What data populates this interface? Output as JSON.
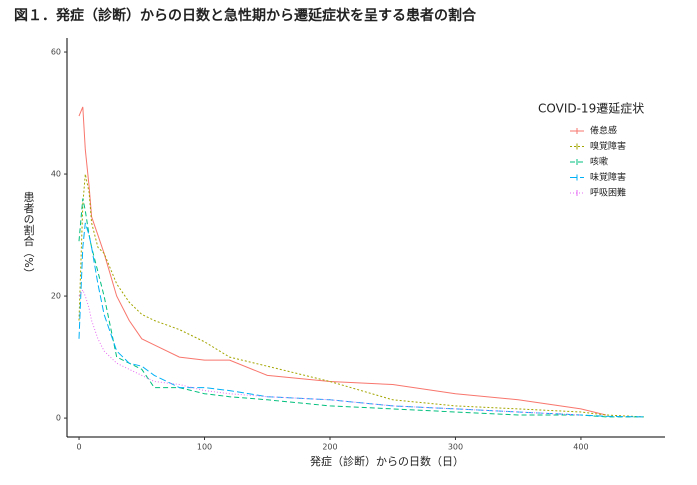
{
  "chart_data": {
    "type": "line",
    "title": "図１．発症（診断）からの日数と急性期から遷延症状を呈する患者の割合",
    "x_label": "発症（診断）からの日数（日）",
    "y_label": "患者の割合（%）",
    "legend_title": "COVID-19遷延症状",
    "x": [
      0,
      3,
      5,
      8,
      10,
      15,
      20,
      30,
      40,
      50,
      60,
      80,
      100,
      120,
      150,
      200,
      250,
      300,
      350,
      400,
      420,
      450
    ],
    "series": [
      {
        "name": "倦怠感",
        "color": "#F8766D",
        "dash": "none",
        "values": [
          49.5,
          51,
          44,
          38,
          33,
          30,
          27,
          20,
          16,
          13,
          12,
          10,
          9.5,
          9.5,
          7,
          6,
          5.5,
          4,
          3,
          1.5,
          0.5,
          null
        ]
      },
      {
        "name": "嗅覚障害",
        "color": "#A3A500",
        "dash": "2,2",
        "values": [
          16,
          35,
          40,
          37,
          32,
          28,
          27,
          22,
          19,
          17,
          16,
          14.5,
          12.5,
          10,
          8.5,
          6,
          3,
          2,
          1.5,
          1,
          0.5,
          0.2
        ]
      },
      {
        "name": "咳嗽",
        "color": "#00BF7D",
        "dash": "5,3",
        "values": [
          29,
          36,
          34,
          30,
          28,
          24,
          20,
          10,
          9,
          8,
          5,
          5,
          4,
          3.5,
          3,
          2,
          1.5,
          1,
          0.5,
          0.5,
          0.2,
          0.2
        ]
      },
      {
        "name": "味覚障害",
        "color": "#00B0F6",
        "dash": "7,3",
        "values": [
          13,
          28,
          32,
          30,
          28,
          22,
          17,
          11,
          9,
          8.5,
          7,
          5,
          5,
          4.5,
          3.5,
          3,
          2,
          1.5,
          1,
          0.5,
          0.3,
          0.2
        ]
      },
      {
        "name": "呼吸困難",
        "color": "#E76BF3",
        "dash": "1,2",
        "values": [
          20,
          21,
          20,
          18,
          16,
          13,
          11,
          9,
          8,
          7,
          6,
          5.5,
          4.5,
          4,
          3.5,
          3,
          2,
          1.5,
          1,
          0.5,
          null,
          null
        ]
      }
    ],
    "xlim": [
      -9.6,
      467
    ],
    "ylim": [
      -3.1,
      62.3
    ],
    "xticks": [
      0,
      100,
      200,
      300,
      400
    ],
    "yticks": [
      0,
      20,
      40,
      60
    ],
    "grid": false
  }
}
